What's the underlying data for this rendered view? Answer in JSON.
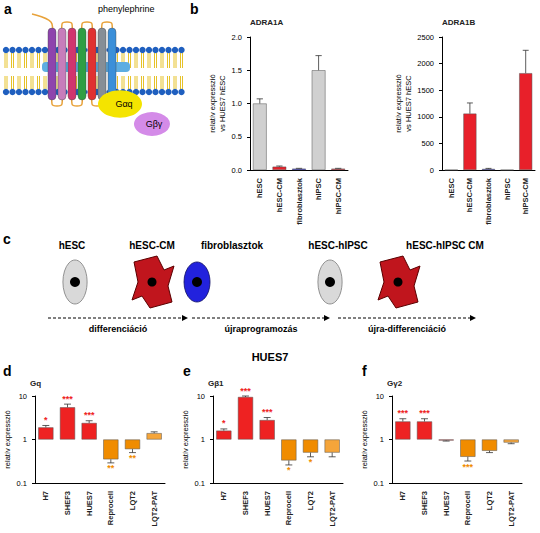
{
  "panel_a": {
    "label": "a",
    "ligand": "phenylephrine",
    "subunits": [
      "Gαq",
      "Gβγ"
    ]
  },
  "panel_c": {
    "label": "c",
    "stages": [
      "hESC",
      "hESC-CM",
      "fibroblasztok",
      "hESC-hIPSC",
      "hESC-hIPSC CM"
    ],
    "steps": [
      "differenciáció",
      "újraprogramozás",
      "újra-differenciáció"
    ]
  },
  "section_title": "HUES7",
  "chart_data": [
    {
      "panel_label": "b",
      "type": "bar",
      "title": "ADRA1A",
      "y_label": "relatív expresszió\nvs HUES7 hESC",
      "categories": [
        "hESC",
        "hESC-CM",
        "fibroblasztok",
        "hIPSC",
        "hIPSC-CM"
      ],
      "values": [
        1.0,
        0.05,
        0.02,
        1.5,
        0.02
      ],
      "errors": [
        0.07,
        0.01,
        0.005,
        0.22,
        0.005
      ],
      "colors": [
        "#d0d0d0",
        "#e8202a",
        "#1a1adb",
        "#d0d0d0",
        "#e8202a"
      ],
      "ylim": [
        0,
        2
      ],
      "yticks": [
        {
          "value": 0,
          "label": "0.0"
        },
        {
          "value": 0.5,
          "label": "0.5"
        },
        {
          "value": 1,
          "label": "1.0"
        },
        {
          "value": 1.5,
          "label": "1.5"
        },
        {
          "value": 2,
          "label": "2.0"
        }
      ],
      "grid": false
    },
    {
      "type": "bar",
      "title": "ADRA1B",
      "y_label": "relatív expresszió\nvs HUES7 hESC",
      "categories": [
        "hESC",
        "hESC-CM",
        "fibroblasztok",
        "hIPSC",
        "hIPSC-CM"
      ],
      "values": [
        1,
        1060,
        20,
        1,
        1820
      ],
      "errors": [
        0,
        200,
        10,
        0,
        430
      ],
      "colors": [
        "#d0d0d0",
        "#e8202a",
        "#1a1adb",
        "#d0d0d0",
        "#e8202a"
      ],
      "ylim": [
        0,
        2500
      ],
      "yticks": [
        0,
        500,
        1000,
        1500,
        2000,
        2500
      ],
      "grid": false
    },
    {
      "panel_label": "d",
      "type": "bar",
      "title": "Gq",
      "log": "y",
      "y_label": "relatív expresszió",
      "categories": [
        "H7",
        "SHEF3",
        "HUES7",
        "Reprocell",
        "LQT2",
        "LQT2-PAT"
      ],
      "values": [
        1.9,
        5.5,
        2.4,
        0.35,
        0.6,
        1.4
      ],
      "errors": [
        0.2,
        1.0,
        0.3,
        0.06,
        0.1,
        0.1
      ],
      "significance": [
        "*",
        "***",
        "***",
        "**",
        "**",
        null
      ],
      "colors": [
        "#ee2222",
        "#ee2222",
        "#ee2222",
        "#f08c00",
        "#f08c00",
        "#f5a53a"
      ],
      "ylim": [
        0.1,
        10
      ],
      "yticks": [
        0.1,
        1,
        10
      ],
      "grid": false
    },
    {
      "panel_label": "e",
      "type": "bar",
      "title": "Gβ1",
      "log": "y",
      "y_label": "relatív expresszió",
      "categories": [
        "H7",
        "SHEF3",
        "HUES7",
        "Reprocell",
        "LQT2",
        "LQT2-PAT"
      ],
      "values": [
        1.6,
        9.5,
        2.8,
        0.33,
        0.5,
        0.5
      ],
      "errors": [
        0.15,
        0.5,
        0.4,
        0.07,
        0.1,
        0.1
      ],
      "significance": [
        "*",
        "***",
        "***",
        "*",
        "*",
        null
      ],
      "colors": [
        "#ee2222",
        "#ee2222",
        "#ee2222",
        "#f08c00",
        "#f08c00",
        "#f5a53a"
      ],
      "ylim": [
        0.1,
        10
      ],
      "yticks": [
        0.1,
        1,
        10
      ],
      "grid": false
    },
    {
      "panel_label": "f",
      "type": "bar",
      "title": "Gγ2",
      "log": "y",
      "y_label": "relatív expresszió",
      "categories": [
        "H7",
        "SHEF3",
        "HUES7",
        "Reprocell",
        "LQT2",
        "LQT2-PAT"
      ],
      "values": [
        2.6,
        2.6,
        0.95,
        0.4,
        0.55,
        0.85
      ],
      "errors": [
        0.4,
        0.4,
        0.03,
        0.08,
        0.05,
        0.05
      ],
      "significance": [
        "***",
        "***",
        null,
        "***",
        null,
        null
      ],
      "colors": [
        "#ee2222",
        "#ee2222",
        "#ee2222",
        "#f08c00",
        "#f08c00",
        "#f5a53a"
      ],
      "ylim": [
        0.1,
        10
      ],
      "yticks": [
        0.1,
        1,
        10
      ],
      "grid": false
    }
  ]
}
